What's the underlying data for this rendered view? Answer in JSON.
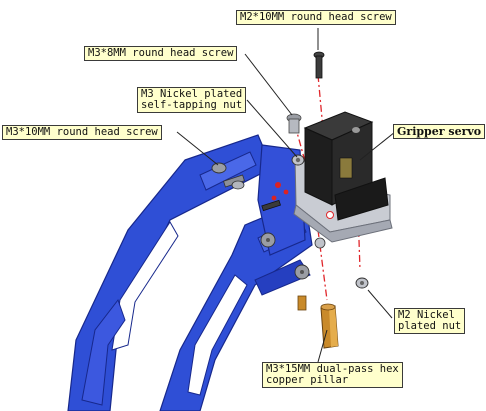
{
  "diagram": {
    "callouts": {
      "m2_10_screw": "M2*10MM round head screw",
      "m3_8_screw": "M3*8MM round head screw",
      "m3_nut_line1": "M3 Nickel plated",
      "m3_nut_line2": "self-tapping nut",
      "m3_10_screw": "M3*10MM round head screw",
      "gripper_servo": "Gripper servo",
      "m2_nut_line1": "M2 Nickel",
      "m2_nut_line2": "plated nut",
      "pillar_line1": "M3*15MM dual-pass hex",
      "pillar_line2": "copper pillar"
    },
    "colors": {
      "arm_blue": "#2f4fd6",
      "arm_dark": "#17288c",
      "servo_black": "#1e1e1e",
      "servo_gold": "#8a7a3c",
      "bracket_silver": "#c9ccd3",
      "pillar_gold": "#c98a2a",
      "axis_red": "#e0262b",
      "callout_bg": "#ffffcc"
    }
  }
}
